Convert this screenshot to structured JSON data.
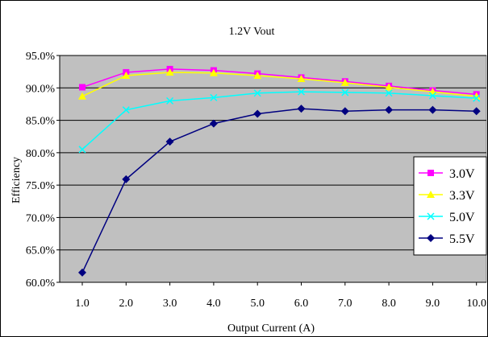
{
  "chart_data": {
    "type": "line",
    "title": "1.2V  Vout",
    "xlabel": "Output Current (A)",
    "ylabel": "Efficiency",
    "x": [
      1.0,
      2.0,
      3.0,
      4.0,
      5.0,
      6.0,
      7.0,
      8.0,
      9.0,
      10.0
    ],
    "x_tick_labels": [
      "1.0",
      "2.0",
      "3.0",
      "4.0",
      "5.0",
      "6.0",
      "7.0",
      "8.0",
      "9.0",
      "10.0"
    ],
    "ylim": [
      60.0,
      95.0
    ],
    "y_tick_values": [
      60,
      65,
      70,
      75,
      80,
      85,
      90,
      95
    ],
    "y_tick_labels": [
      "60.0%",
      "65.0%",
      "70.0%",
      "75.0%",
      "80.0%",
      "85.0%",
      "90.0%",
      "95.0%"
    ],
    "grid": "horizontal",
    "plot_background": "#c0c0c0",
    "legend_position": "right",
    "series": [
      {
        "name": "3.0V",
        "color": "#ff00ff",
        "marker": "square",
        "values": [
          90.1,
          92.4,
          92.9,
          92.7,
          92.2,
          91.6,
          91.0,
          90.3,
          89.6,
          89.0
        ]
      },
      {
        "name": "3.3V",
        "color": "#ffff00",
        "marker": "triangle",
        "values": [
          88.7,
          91.9,
          92.4,
          92.3,
          91.9,
          91.4,
          90.8,
          90.1,
          89.4,
          88.7
        ]
      },
      {
        "name": "5.0V",
        "color": "#00ffff",
        "marker": "x",
        "values": [
          80.5,
          86.6,
          88.0,
          88.5,
          89.2,
          89.4,
          89.3,
          89.2,
          88.8,
          88.4
        ]
      },
      {
        "name": "5.5V",
        "color": "#000080",
        "marker": "diamond",
        "values": [
          61.5,
          75.9,
          81.7,
          84.5,
          86.0,
          86.8,
          86.4,
          86.6,
          86.6,
          86.4
        ]
      }
    ]
  }
}
